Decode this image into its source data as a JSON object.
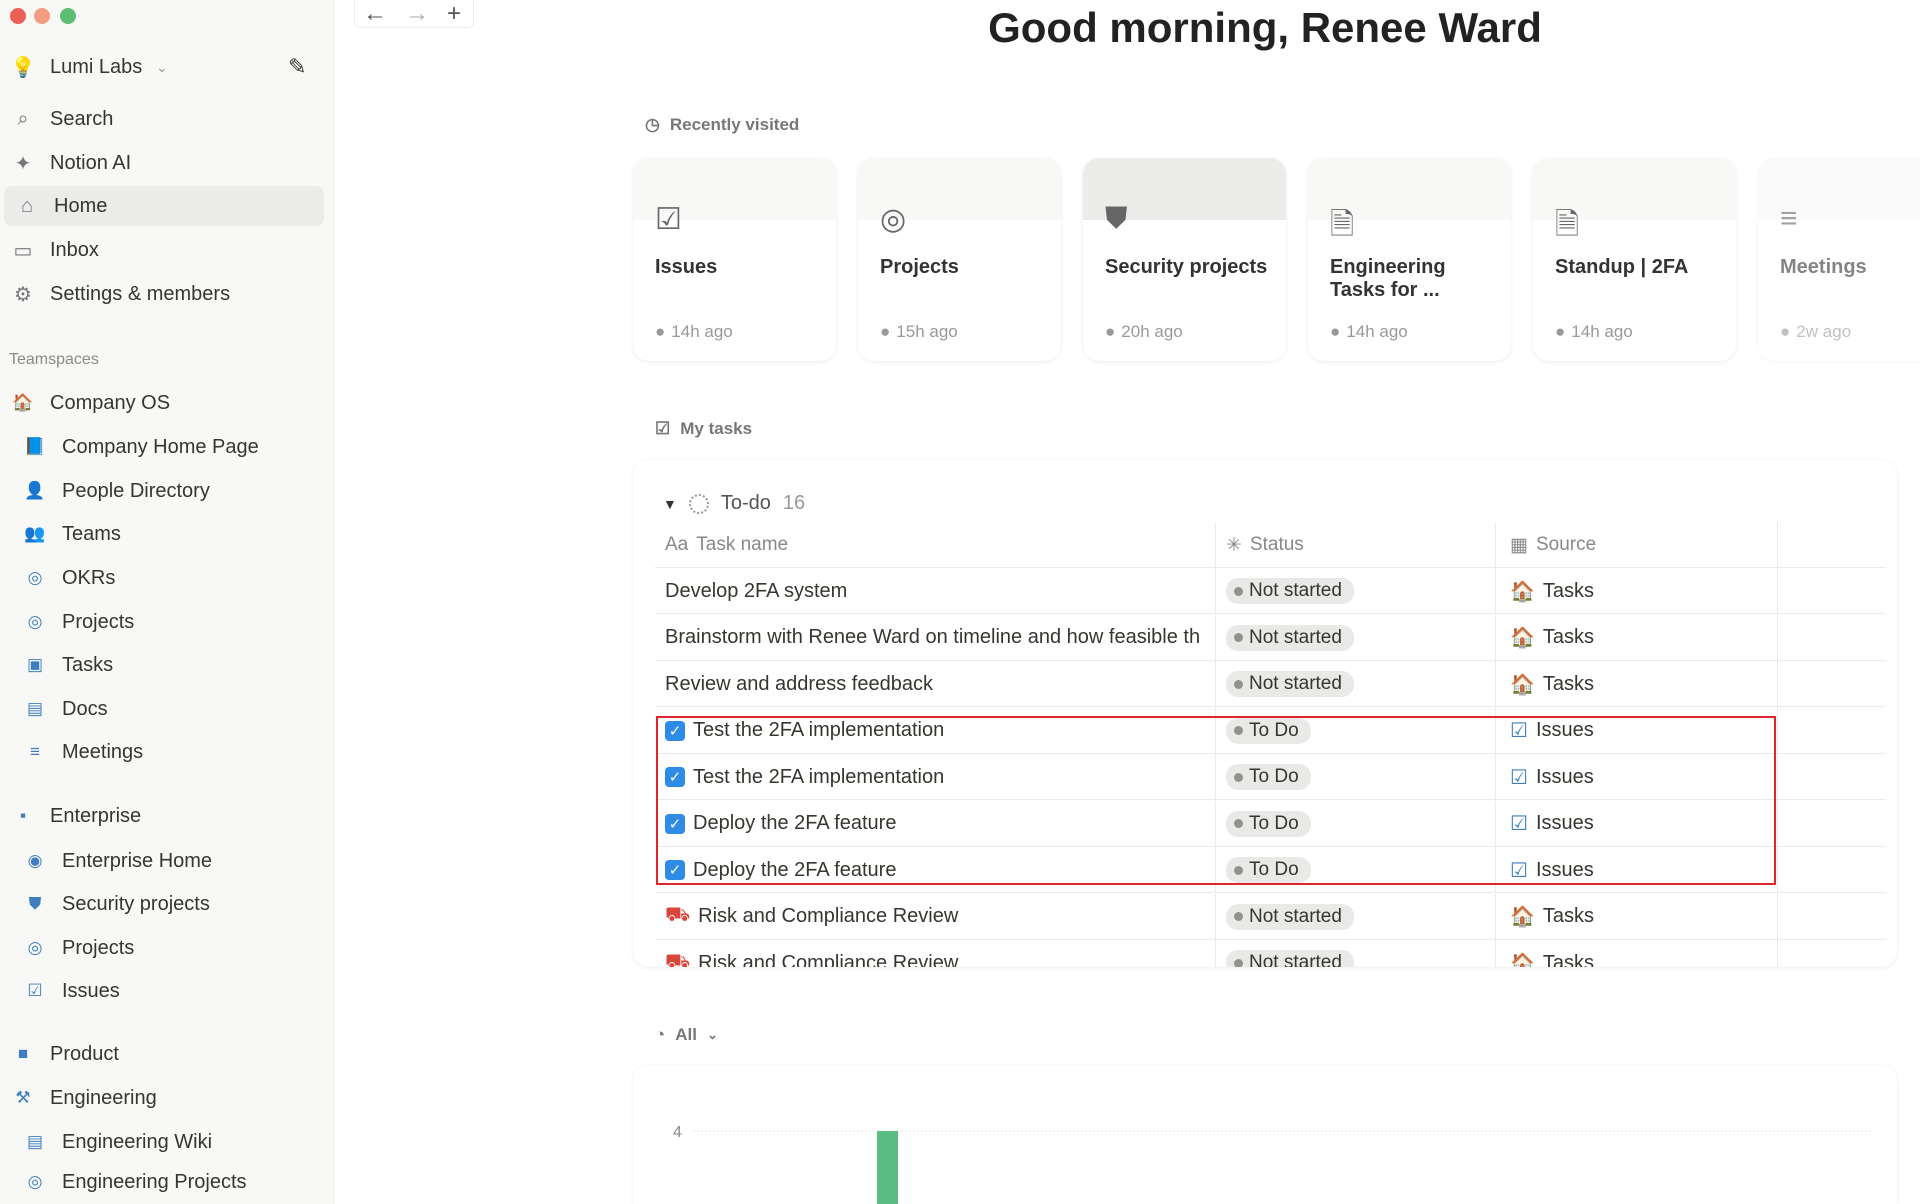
{
  "window": {
    "controls": [
      "close",
      "minimize",
      "maximize"
    ]
  },
  "sidebar": {
    "workspace": "Lumi Labs",
    "nav": [
      {
        "label": "Search",
        "icon": "search-icon"
      },
      {
        "label": "Notion AI",
        "icon": "sparkle-icon"
      },
      {
        "label": "Home",
        "icon": "home-icon",
        "active": true
      },
      {
        "label": "Inbox",
        "icon": "inbox-icon"
      },
      {
        "label": "Settings & members",
        "icon": "gear-icon"
      }
    ],
    "teamspaces_label": "Teamspaces",
    "teamspaces": [
      {
        "label": "Company OS",
        "level": 1
      },
      {
        "label": "Company Home Page",
        "level": 2
      },
      {
        "label": "People Directory",
        "level": 2
      },
      {
        "label": "Teams",
        "level": 2
      },
      {
        "label": "OKRs",
        "level": 2
      },
      {
        "label": "Projects",
        "level": 2
      },
      {
        "label": "Tasks",
        "level": 2
      },
      {
        "label": "Docs",
        "level": 2
      },
      {
        "label": "Meetings",
        "level": 2
      },
      {
        "label": "Enterprise",
        "level": 1
      },
      {
        "label": "Enterprise Home",
        "level": 2
      },
      {
        "label": "Security projects",
        "level": 2
      },
      {
        "label": "Projects",
        "level": 2
      },
      {
        "label": "Issues",
        "level": 2
      },
      {
        "label": "Product",
        "level": 1
      },
      {
        "label": "Engineering",
        "level": 1
      },
      {
        "label": "Engineering Wiki",
        "level": 2
      },
      {
        "label": "Engineering Projects",
        "level": 2
      }
    ]
  },
  "main": {
    "greeting": "Good morning, Renee Ward",
    "recently_visited_label": "Recently visited",
    "recent": [
      {
        "title": "Issues",
        "time": "14h ago",
        "icon": "checkbox-icon"
      },
      {
        "title": "Projects",
        "time": "15h ago",
        "icon": "target-icon"
      },
      {
        "title": "Security projects",
        "time": "20h ago",
        "icon": "shield-icon"
      },
      {
        "title": "Engineering Tasks for ...",
        "time": "14h ago",
        "icon": "document-icon"
      },
      {
        "title": "Standup | 2FA",
        "time": "14h ago",
        "icon": "document-icon"
      },
      {
        "title": "Meetings",
        "time": "2w ago",
        "icon": "meetings-icon"
      }
    ],
    "my_tasks_label": "My tasks",
    "group": {
      "label": "To-do",
      "count": "16"
    },
    "columns": {
      "name": "Task name",
      "status": "Status",
      "source": "Source"
    },
    "tasks": [
      {
        "name": "Develop 2FA system",
        "status": "Not started",
        "source": "Tasks"
      },
      {
        "name": "Brainstorm with Renee Ward on timeline and how feasible th",
        "status": "Not started",
        "source": "Tasks"
      },
      {
        "name": "Review and address feedback",
        "status": "Not started",
        "source": "Tasks"
      },
      {
        "name": "Test the 2FA implementation",
        "status": "To Do",
        "source": "Issues",
        "checked": true
      },
      {
        "name": "Test the 2FA implementation",
        "status": "To Do",
        "source": "Issues",
        "checked": true
      },
      {
        "name": "Deploy the 2FA feature",
        "status": "To Do",
        "source": "Issues",
        "checked": true
      },
      {
        "name": "Deploy the 2FA feature",
        "status": "To Do",
        "source": "Issues",
        "checked": true
      },
      {
        "name": "Risk and Compliance Review",
        "status": "Not started",
        "source": "Tasks"
      },
      {
        "name": "Risk and Compliance Review",
        "status": "Not started",
        "source": "Tasks"
      }
    ],
    "filter_label": "All",
    "highlight_color": "#e0232d"
  },
  "chart_data": {
    "type": "bar",
    "yticks": [
      4
    ],
    "values": [
      4
    ],
    "color": "#5bbd83"
  }
}
